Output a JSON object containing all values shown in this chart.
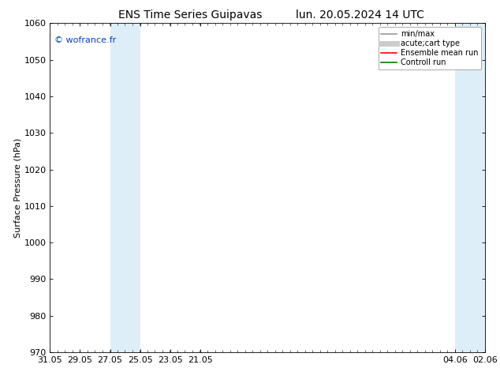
{
  "title_left": "ENS Time Series Guipavas",
  "title_right": "lun. 20.05.2024 14 UTC",
  "ylabel": "Surface Pressure (hPa)",
  "ylim": [
    970,
    1060
  ],
  "yticks": [
    970,
    980,
    990,
    1000,
    1010,
    1020,
    1030,
    1040,
    1050,
    1060
  ],
  "xtick_labels": [
    "21.05",
    "23.05",
    "25.05",
    "27.05",
    "29.05",
    "31.05",
    "02.06",
    "04.06"
  ],
  "xtick_positions": [
    21.05,
    23.05,
    25.05,
    27.05,
    29.05,
    31.05,
    2.06,
    4.06
  ],
  "xlim": [
    20.05,
    5.06
  ],
  "shaded_regions": [
    {
      "xmin": 25.05,
      "xmax": 26.05,
      "color": "#ddeef8"
    },
    {
      "xmin": 26.05,
      "xmax": 27.05,
      "color": "#ddeef8"
    },
    {
      "xmin": 2.06,
      "xmax": 3.06,
      "color": "#ddeef8"
    },
    {
      "xmin": 3.06,
      "xmax": 4.06,
      "color": "#ddeef8"
    }
  ],
  "watermark_text": "© wofrance.fr",
  "watermark_color": "#0044bb",
  "background_color": "#ffffff",
  "legend_entries": [
    {
      "label": "min/max",
      "color": "#999999",
      "lw": 1.2,
      "ls": "-"
    },
    {
      "label": "acute;cart type",
      "color": "#cccccc",
      "lw": 5,
      "ls": "-"
    },
    {
      "label": "Ensemble mean run",
      "color": "#ff0000",
      "lw": 1.2,
      "ls": "-"
    },
    {
      "label": "Controll run",
      "color": "#008000",
      "lw": 1.2,
      "ls": "-"
    }
  ],
  "title_fontsize": 10,
  "axis_fontsize": 8,
  "tick_fontsize": 8,
  "legend_fontsize": 7,
  "watermark_fontsize": 8
}
